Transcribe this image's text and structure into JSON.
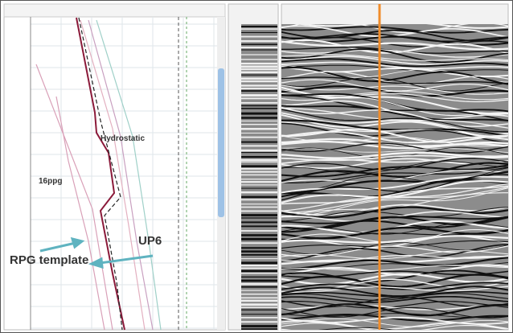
{
  "annotations": {
    "hydrostatic": "Hydrostatic",
    "mud_weight": "16ppg",
    "horizon": "UP6",
    "template": "RPG template"
  }
}
